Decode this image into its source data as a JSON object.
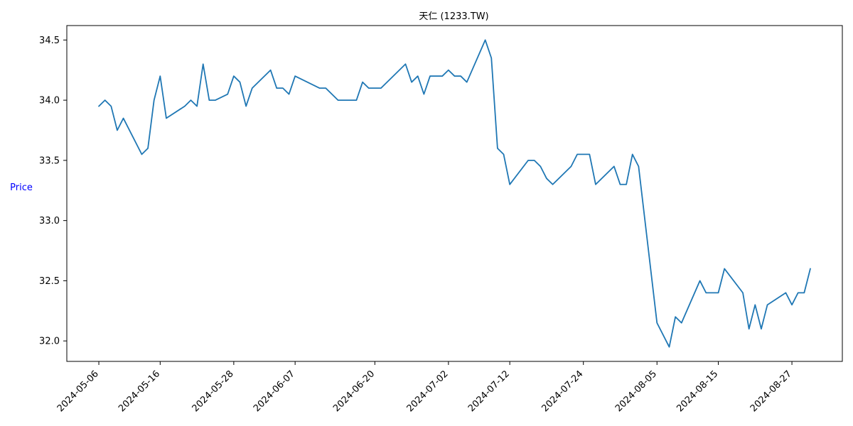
{
  "chart_data": {
    "type": "line",
    "title": "天仁 (1233.TW)",
    "xlabel": "",
    "ylabel": "Price",
    "ylabel_color": "#0000ff",
    "line_color": "#1f77b4",
    "grid": false,
    "ylim": [
      31.83,
      34.62
    ],
    "yticks": [
      32.0,
      32.5,
      33.0,
      33.5,
      34.0,
      34.5
    ],
    "xticks": [
      "2024-05-06",
      "2024-05-16",
      "2024-05-28",
      "2024-06-07",
      "2024-06-20",
      "2024-07-02",
      "2024-07-12",
      "2024-07-24",
      "2024-08-05",
      "2024-08-15",
      "2024-08-27"
    ],
    "series": [
      {
        "points": [
          [
            "2024-05-06",
            33.95
          ],
          [
            "2024-05-07",
            34.0
          ],
          [
            "2024-05-08",
            33.95
          ],
          [
            "2024-05-09",
            33.75
          ],
          [
            "2024-05-10",
            33.85
          ],
          [
            "2024-05-13",
            33.55
          ],
          [
            "2024-05-14",
            33.6
          ],
          [
            "2024-05-15",
            34.0
          ],
          [
            "2024-05-16",
            34.2
          ],
          [
            "2024-05-17",
            33.85
          ],
          [
            "2024-05-20",
            33.95
          ],
          [
            "2024-05-21",
            34.0
          ],
          [
            "2024-05-22",
            33.95
          ],
          [
            "2024-05-23",
            34.3
          ],
          [
            "2024-05-24",
            34.0
          ],
          [
            "2024-05-25",
            34.0
          ],
          [
            "2024-05-27",
            34.05
          ],
          [
            "2024-05-28",
            34.2
          ],
          [
            "2024-05-29",
            34.15
          ],
          [
            "2024-05-30",
            33.95
          ],
          [
            "2024-05-31",
            34.1
          ],
          [
            "2024-06-03",
            34.25
          ],
          [
            "2024-06-04",
            34.1
          ],
          [
            "2024-06-05",
            34.1
          ],
          [
            "2024-06-06",
            34.05
          ],
          [
            "2024-06-07",
            34.2
          ],
          [
            "2024-06-11",
            34.1
          ],
          [
            "2024-06-12",
            34.1
          ],
          [
            "2024-06-14",
            34.0
          ],
          [
            "2024-06-17",
            34.0
          ],
          [
            "2024-06-18",
            34.15
          ],
          [
            "2024-06-19",
            34.1
          ],
          [
            "2024-06-21",
            34.1
          ],
          [
            "2024-06-25",
            34.3
          ],
          [
            "2024-06-26",
            34.15
          ],
          [
            "2024-06-27",
            34.2
          ],
          [
            "2024-06-28",
            34.05
          ],
          [
            "2024-06-29",
            34.2
          ],
          [
            "2024-07-01",
            34.2
          ],
          [
            "2024-07-02",
            34.25
          ],
          [
            "2024-07-03",
            34.2
          ],
          [
            "2024-07-04",
            34.2
          ],
          [
            "2024-07-05",
            34.15
          ],
          [
            "2024-07-08",
            34.5
          ],
          [
            "2024-07-09",
            34.35
          ],
          [
            "2024-07-10",
            33.6
          ],
          [
            "2024-07-11",
            33.55
          ],
          [
            "2024-07-12",
            33.3
          ],
          [
            "2024-07-15",
            33.5
          ],
          [
            "2024-07-16",
            33.5
          ],
          [
            "2024-07-17",
            33.45
          ],
          [
            "2024-07-18",
            33.35
          ],
          [
            "2024-07-19",
            33.3
          ],
          [
            "2024-07-22",
            33.45
          ],
          [
            "2024-07-23",
            33.55
          ],
          [
            "2024-07-24",
            33.55
          ],
          [
            "2024-07-25",
            33.55
          ],
          [
            "2024-07-26",
            33.3
          ],
          [
            "2024-07-29",
            33.45
          ],
          [
            "2024-07-30",
            33.3
          ],
          [
            "2024-07-31",
            33.3
          ],
          [
            "2024-08-01",
            33.55
          ],
          [
            "2024-08-02",
            33.45
          ],
          [
            "2024-08-05",
            32.15
          ],
          [
            "2024-08-07",
            31.95
          ],
          [
            "2024-08-08",
            32.2
          ],
          [
            "2024-08-09",
            32.15
          ],
          [
            "2024-08-12",
            32.5
          ],
          [
            "2024-08-13",
            32.4
          ],
          [
            "2024-08-15",
            32.4
          ],
          [
            "2024-08-16",
            32.6
          ],
          [
            "2024-08-19",
            32.4
          ],
          [
            "2024-08-20",
            32.1
          ],
          [
            "2024-08-21",
            32.3
          ],
          [
            "2024-08-22",
            32.1
          ],
          [
            "2024-08-23",
            32.3
          ],
          [
            "2024-08-26",
            32.4
          ],
          [
            "2024-08-27",
            32.3
          ],
          [
            "2024-08-28",
            32.4
          ],
          [
            "2024-08-29",
            32.4
          ],
          [
            "2024-08-30",
            32.6
          ]
        ]
      }
    ]
  }
}
